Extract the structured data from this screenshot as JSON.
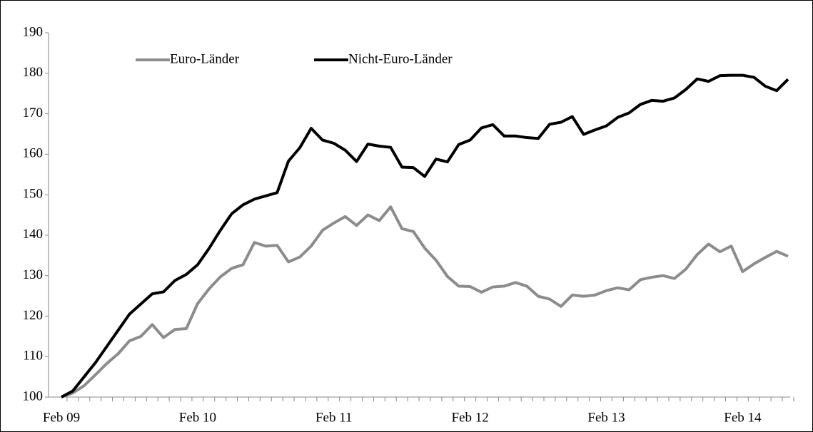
{
  "chart_data": {
    "type": "line",
    "categories": [
      "Feb 09",
      null,
      null,
      null,
      null,
      null,
      null,
      null,
      null,
      null,
      null,
      null,
      "Feb 10",
      null,
      null,
      null,
      null,
      null,
      null,
      null,
      null,
      null,
      null,
      null,
      "Feb 11",
      null,
      null,
      null,
      null,
      null,
      null,
      null,
      null,
      null,
      null,
      null,
      "Feb 12",
      null,
      null,
      null,
      null,
      null,
      null,
      null,
      null,
      null,
      null,
      null,
      "Feb 13",
      null,
      null,
      null,
      null,
      null,
      null,
      null,
      null,
      null,
      null,
      null,
      "Feb 14",
      null,
      null,
      null,
      null
    ],
    "series": [
      {
        "name": "Euro-Länder",
        "color": "#8c8c8c",
        "values": [
          100,
          101,
          102.8,
          105.5,
          108.3,
          110.7,
          113.9,
          115,
          117.9,
          114.7,
          116.7,
          116.9,
          123.1,
          126.7,
          129.7,
          131.8,
          132.7,
          138.2,
          137.3,
          137.5,
          133.4,
          134.6,
          137.3,
          141.2,
          143,
          144.6,
          142.4,
          145,
          143.6,
          147,
          141.6,
          140.9,
          136.8,
          133.8,
          129.8,
          127.4,
          127.3,
          125.9,
          127.2,
          127.4,
          128.3,
          127.4,
          124.9,
          124.2,
          122.4,
          125.2,
          124.9,
          125.2,
          126.3,
          127,
          126.5,
          129,
          129.6,
          130,
          129.3,
          131.6,
          135.2,
          137.8,
          135.9,
          137.3,
          131,
          132.9,
          134.5,
          136,
          134.8
        ]
      },
      {
        "name": "Nicht-Euro-Länder",
        "color": "#000000",
        "values": [
          100,
          101.5,
          105,
          108.5,
          112.5,
          116.5,
          120.5,
          123,
          125.5,
          126,
          128.8,
          130.3,
          132.7,
          136.7,
          141.2,
          145.3,
          147.5,
          148.9,
          149.7,
          150.5,
          158.3,
          161.6,
          166.4,
          163.5,
          162.7,
          161,
          158.2,
          162.5,
          162,
          161.7,
          156.8,
          156.7,
          154.5,
          158.8,
          158.1,
          162.4,
          163.5,
          166.5,
          167.3,
          164.5,
          164.5,
          164.1,
          163.9,
          167.4,
          167.9,
          169.3,
          164.9,
          166,
          167,
          169.1,
          170.2,
          172.3,
          173.3,
          173.1,
          173.9,
          176,
          178.6,
          178,
          179.4,
          179.5,
          179.5,
          179,
          176.8,
          175.7,
          178.5
        ]
      }
    ],
    "ylim": [
      100,
      190
    ],
    "yticks": [
      100,
      110,
      120,
      130,
      140,
      150,
      160,
      170,
      180,
      190
    ],
    "legend": "top-left"
  }
}
